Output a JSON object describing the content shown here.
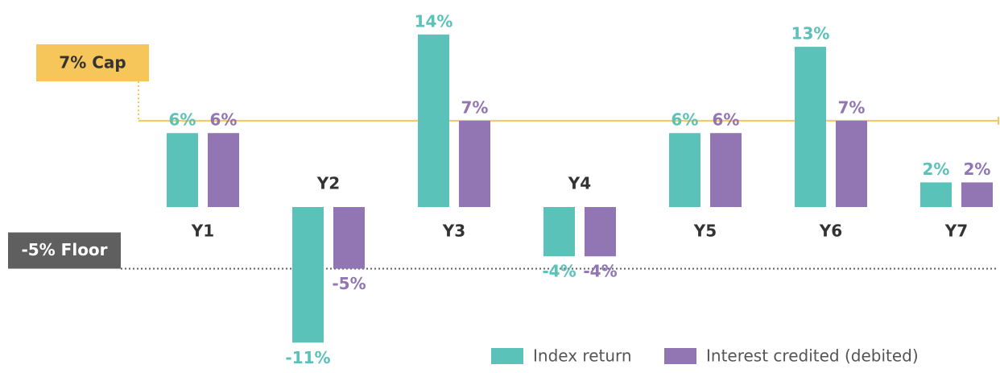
{
  "chart_data": {
    "type": "bar",
    "categories": [
      "Y1",
      "Y2",
      "Y3",
      "Y4",
      "Y5",
      "Y6",
      "Y7"
    ],
    "series": [
      {
        "name": "Index return",
        "color": "#5bc2b9",
        "values": [
          6,
          -11,
          14,
          -4,
          6,
          13,
          2
        ],
        "value_labels": [
          "6%",
          "-11%",
          "14%",
          "-4%",
          "6%",
          "13%",
          "2%"
        ]
      },
      {
        "name": "Interest credited (debited)",
        "color": "#9276b4",
        "values": [
          6,
          -5,
          7,
          -4,
          6,
          7,
          2
        ],
        "value_labels": [
          "6%",
          "-5%",
          "7%",
          "-4%",
          "6%",
          "7%",
          "2%"
        ]
      }
    ],
    "ylim": [
      -12,
      15
    ],
    "reference_lines": [
      {
        "value": 7,
        "label": "7% Cap",
        "color": "#f7c65b"
      },
      {
        "value": -5,
        "label": "-5% Floor",
        "color": "#5f5f5f"
      }
    ]
  }
}
